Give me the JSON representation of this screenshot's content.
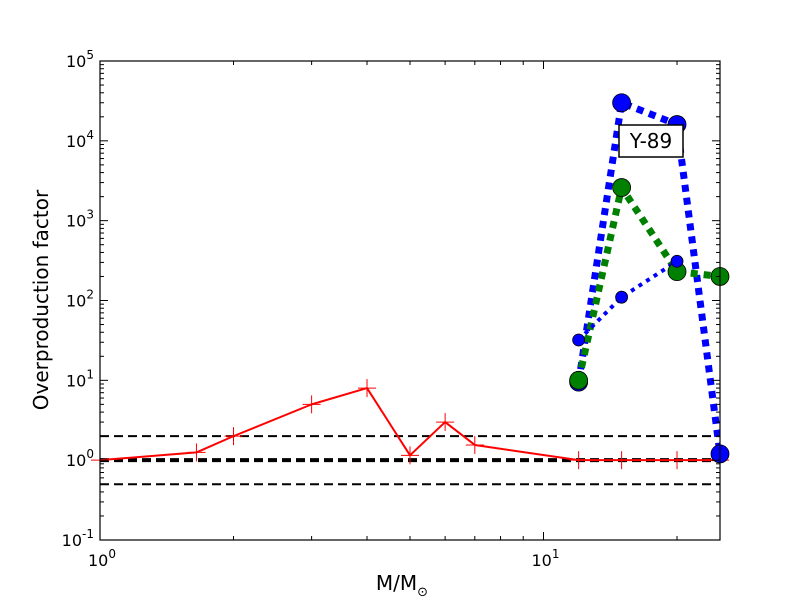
{
  "chart_data": {
    "type": "line",
    "xscale": "log",
    "yscale": "log",
    "xlim": [
      1,
      25
    ],
    "ylim": [
      0.1,
      100000
    ],
    "xlabel": "M/M",
    "xlabel_subscript": "⊙",
    "ylabel": "Overproduction factor",
    "annotation": "Y-89",
    "x_tick_labels": [
      {
        "value": 1,
        "base": "10",
        "exp": "0"
      },
      {
        "value": 10,
        "base": "10",
        "exp": "1"
      }
    ],
    "y_tick_labels": [
      {
        "value": 0.1,
        "base": "10",
        "exp": "-1"
      },
      {
        "value": 1,
        "base": "10",
        "exp": "0"
      },
      {
        "value": 10,
        "base": "10",
        "exp": "1"
      },
      {
        "value": 100,
        "base": "10",
        "exp": "2"
      },
      {
        "value": 1000,
        "base": "10",
        "exp": "3"
      },
      {
        "value": 10000,
        "base": "10",
        "exp": "4"
      },
      {
        "value": 100000,
        "base": "10",
        "exp": "5"
      }
    ],
    "reference_lines": [
      {
        "y": 2,
        "style": "dashed",
        "color": "#000000",
        "width": 2
      },
      {
        "y": 1,
        "style": "dashed",
        "color": "#000000",
        "width": 4
      },
      {
        "y": 0.5,
        "style": "dashed",
        "color": "#000000",
        "width": 2
      }
    ],
    "series": [
      {
        "color": "#ff0000",
        "line": "solid",
        "marker": "plus",
        "x": [
          1,
          1.65,
          2,
          3,
          4,
          5,
          6,
          7,
          12,
          15,
          20,
          25
        ],
        "y": [
          1,
          1.25,
          2,
          5,
          8,
          1.15,
          3,
          1.55,
          1,
          1,
          1,
          1
        ]
      },
      {
        "color": "#0000ff",
        "line": "dotted-thick",
        "marker": "circle-large",
        "x": [
          12,
          15,
          20,
          25
        ],
        "y": [
          9.5,
          30000,
          16000,
          1.2
        ]
      },
      {
        "color": "#008000",
        "line": "dotted-thick",
        "marker": "circle-large",
        "x": [
          12,
          15,
          20,
          25
        ],
        "y": [
          10,
          2600,
          230,
          200
        ]
      },
      {
        "color": "#0000ff",
        "line": "dotted-thin",
        "marker": "circle-small",
        "x": [
          12,
          15,
          20
        ],
        "y": [
          32,
          110,
          310
        ]
      }
    ]
  }
}
